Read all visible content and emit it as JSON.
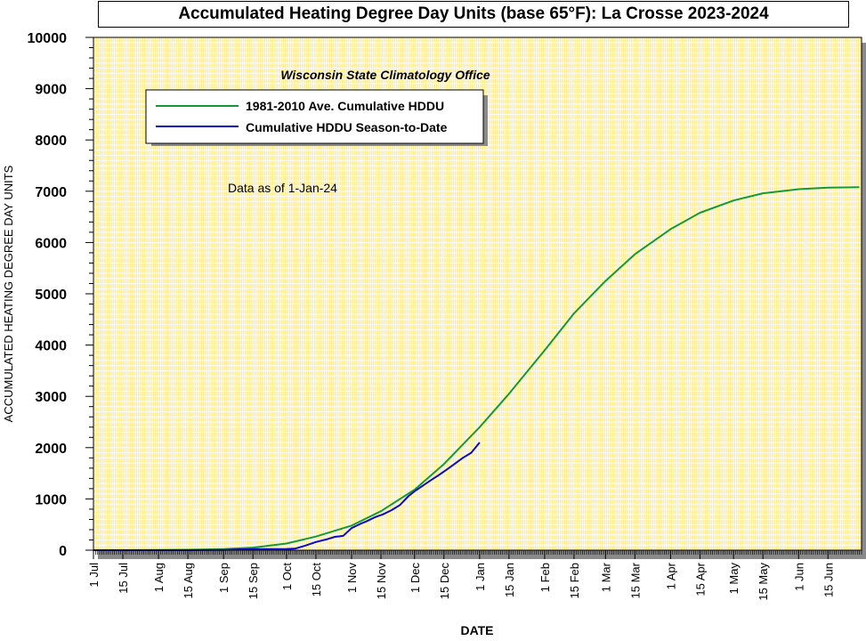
{
  "chart_data": {
    "type": "line",
    "title": "Accumulated Heating Degree Day Units (base 65°F): La Crosse 2023-2024",
    "subtitle": "Wisconsin State Climatology Office",
    "annotation": "Data as of 1-Jan-24",
    "xlabel": "DATE",
    "ylabel": "ACCUMULATED HEATING DEGREE DAY UNITS",
    "ylim": [
      0,
      10000
    ],
    "xlim": [
      "2023-07-01",
      "2024-06-30"
    ],
    "y_ticks": [
      "0",
      "1000",
      "2000",
      "3000",
      "4000",
      "5000",
      "6000",
      "7000",
      "8000",
      "9000",
      "10000"
    ],
    "x_ticks": [
      {
        "date": "2023-07-01",
        "label": "1 Jul"
      },
      {
        "date": "2023-07-15",
        "label": "15 Jul"
      },
      {
        "date": "2023-08-01",
        "label": "1 Aug"
      },
      {
        "date": "2023-08-15",
        "label": "15 Aug"
      },
      {
        "date": "2023-09-01",
        "label": "1 Sep"
      },
      {
        "date": "2023-09-15",
        "label": "15 Sep"
      },
      {
        "date": "2023-10-01",
        "label": "1 Oct"
      },
      {
        "date": "2023-10-15",
        "label": "15 Oct"
      },
      {
        "date": "2023-11-01",
        "label": "1 Nov"
      },
      {
        "date": "2023-11-15",
        "label": "15 Nov"
      },
      {
        "date": "2023-12-01",
        "label": "1 Dec"
      },
      {
        "date": "2023-12-15",
        "label": "15 Dec"
      },
      {
        "date": "2024-01-01",
        "label": "1 Jan"
      },
      {
        "date": "2024-01-15",
        "label": "15 Jan"
      },
      {
        "date": "2024-02-01",
        "label": "1 Feb"
      },
      {
        "date": "2024-02-15",
        "label": "15 Feb"
      },
      {
        "date": "2024-03-01",
        "label": "1 Mar"
      },
      {
        "date": "2024-03-15",
        "label": "15 Mar"
      },
      {
        "date": "2024-04-01",
        "label": "1 Apr"
      },
      {
        "date": "2024-04-15",
        "label": "15 Apr"
      },
      {
        "date": "2024-05-01",
        "label": "1 May"
      },
      {
        "date": "2024-05-15",
        "label": "15 May"
      },
      {
        "date": "2024-06-01",
        "label": "1 Jun"
      },
      {
        "date": "2024-06-15",
        "label": "15 Jun"
      }
    ],
    "grid": true,
    "legend_position": "top-left",
    "colors": {
      "plot_bg": "#ffeb8c",
      "grid": "#ffffff",
      "average": "#149a34",
      "season": "#0a0acc"
    },
    "series": [
      {
        "name": "1981-2010 Ave. Cumulative HDDU",
        "color": "#149a34",
        "points": [
          [
            "2023-07-01",
            0
          ],
          [
            "2023-08-01",
            3
          ],
          [
            "2023-08-15",
            8
          ],
          [
            "2023-09-01",
            20
          ],
          [
            "2023-09-15",
            50
          ],
          [
            "2023-10-01",
            130
          ],
          [
            "2023-10-15",
            265
          ],
          [
            "2023-11-01",
            480
          ],
          [
            "2023-11-15",
            760
          ],
          [
            "2023-12-01",
            1180
          ],
          [
            "2023-12-15",
            1680
          ],
          [
            "2024-01-01",
            2400
          ],
          [
            "2024-01-15",
            3050
          ],
          [
            "2024-02-01",
            3900
          ],
          [
            "2024-02-15",
            4620
          ],
          [
            "2024-03-01",
            5250
          ],
          [
            "2024-03-15",
            5770
          ],
          [
            "2024-04-01",
            6260
          ],
          [
            "2024-04-15",
            6580
          ],
          [
            "2024-05-01",
            6820
          ],
          [
            "2024-05-15",
            6960
          ],
          [
            "2024-06-01",
            7040
          ],
          [
            "2024-06-15",
            7070
          ],
          [
            "2024-06-30",
            7080
          ]
        ]
      },
      {
        "name": "Cumulative HDDU Season-to-Date",
        "color": "#0a0acc",
        "points": [
          [
            "2023-07-01",
            0
          ],
          [
            "2023-08-15",
            0
          ],
          [
            "2023-09-01",
            5
          ],
          [
            "2023-09-15",
            20
          ],
          [
            "2023-10-01",
            25
          ],
          [
            "2023-10-05",
            30
          ],
          [
            "2023-10-10",
            90
          ],
          [
            "2023-10-15",
            160
          ],
          [
            "2023-10-20",
            210
          ],
          [
            "2023-10-24",
            260
          ],
          [
            "2023-10-28",
            280
          ],
          [
            "2023-11-01",
            430
          ],
          [
            "2023-11-05",
            510
          ],
          [
            "2023-11-08",
            560
          ],
          [
            "2023-11-12",
            640
          ],
          [
            "2023-11-16",
            700
          ],
          [
            "2023-11-20",
            780
          ],
          [
            "2023-11-24",
            880
          ],
          [
            "2023-11-28",
            1050
          ],
          [
            "2023-12-01",
            1150
          ],
          [
            "2023-12-05",
            1260
          ],
          [
            "2023-12-09",
            1370
          ],
          [
            "2023-12-12",
            1450
          ],
          [
            "2023-12-16",
            1560
          ],
          [
            "2023-12-20",
            1680
          ],
          [
            "2023-12-24",
            1800
          ],
          [
            "2023-12-28",
            1900
          ],
          [
            "2024-01-01",
            2100
          ]
        ]
      }
    ]
  }
}
